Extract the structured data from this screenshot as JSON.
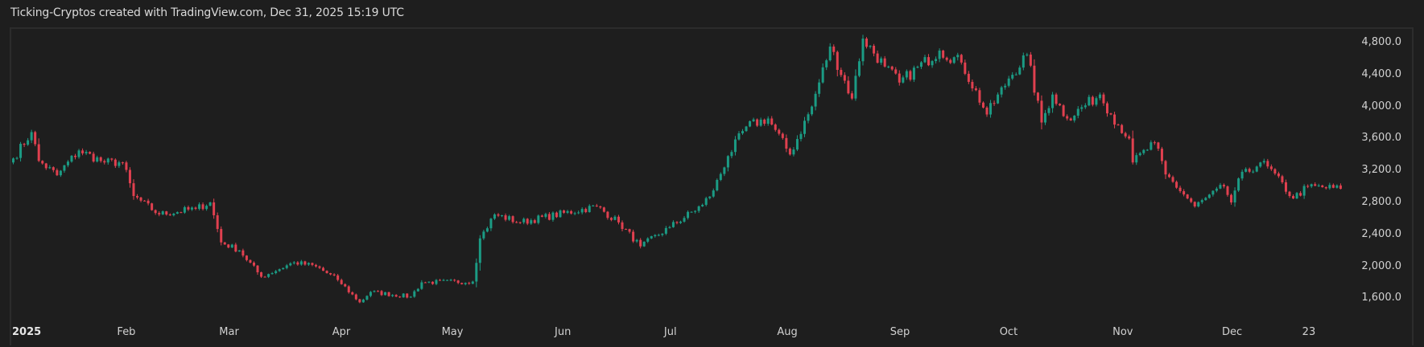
{
  "header": {
    "title": "Ticking-Cryptos created with TradingView.com, Dec 31, 2025 15:19 UTC"
  },
  "colors": {
    "background": "#1e1e1e",
    "frame": "#2c2c2c",
    "up": "#1b9b84",
    "down": "#e0404f",
    "text": "#d1d1d1"
  },
  "price_axis": {
    "labels": [
      "4,800.0",
      "4,400.0",
      "4,000.0",
      "3,600.0",
      "3,200.0",
      "2,800.0",
      "2,400.0",
      "2,000.0",
      "1,600.0"
    ],
    "values": [
      4800,
      4400,
      4000,
      3600,
      3200,
      2800,
      2400,
      2000,
      1600
    ]
  },
  "time_axis": {
    "labels": [
      "2025",
      "Feb",
      "Mar",
      "Apr",
      "May",
      "Jun",
      "Jul",
      "Aug",
      "Sep",
      "Oct",
      "Nov",
      "Dec",
      "23"
    ],
    "day_index": [
      0,
      31,
      59,
      90,
      120,
      151,
      181,
      212,
      243,
      273,
      304,
      334,
      356
    ]
  },
  "chart_data": {
    "type": "candlestick",
    "title": "Ticking-Cryptos created with TradingView.com, Dec 31, 2025 15:19 UTC",
    "xlabel": "",
    "ylabel": "",
    "interval": "1D",
    "x_range": [
      "2025-01-01",
      "2025-12-31"
    ],
    "ylim": [
      1400,
      4950
    ],
    "grid": false,
    "y_ticks": [
      1600,
      2000,
      2400,
      2800,
      3200,
      3600,
      4000,
      4400,
      4800
    ],
    "x_ticks": [
      "2025",
      "Feb",
      "Mar",
      "Apr",
      "May",
      "Jun",
      "Jul",
      "Aug",
      "Sep",
      "Oct",
      "Nov",
      "Dec",
      "23"
    ],
    "anchors_close": [
      {
        "date": "2025-01-01",
        "close": 3350
      },
      {
        "date": "2025-01-06",
        "close": 3680
      },
      {
        "date": "2025-01-08",
        "close": 3320
      },
      {
        "date": "2025-01-13",
        "close": 3140
      },
      {
        "date": "2025-01-19",
        "close": 3450
      },
      {
        "date": "2025-01-26",
        "close": 3300
      },
      {
        "date": "2025-01-31",
        "close": 3300
      },
      {
        "date": "2025-02-03",
        "close": 2880
      },
      {
        "date": "2025-02-10",
        "close": 2650
      },
      {
        "date": "2025-02-20",
        "close": 2720
      },
      {
        "date": "2025-02-24",
        "close": 2800
      },
      {
        "date": "2025-02-27",
        "close": 2300
      },
      {
        "date": "2025-03-04",
        "close": 2200
      },
      {
        "date": "2025-03-10",
        "close": 1870
      },
      {
        "date": "2025-03-19",
        "close": 2050
      },
      {
        "date": "2025-03-25",
        "close": 2000
      },
      {
        "date": "2025-03-31",
        "close": 1830
      },
      {
        "date": "2025-04-06",
        "close": 1550
      },
      {
        "date": "2025-04-09",
        "close": 1680
      },
      {
        "date": "2025-04-20",
        "close": 1620
      },
      {
        "date": "2025-04-23",
        "close": 1800
      },
      {
        "date": "2025-05-07",
        "close": 1810
      },
      {
        "date": "2025-05-09",
        "close": 2350
      },
      {
        "date": "2025-05-13",
        "close": 2650
      },
      {
        "date": "2025-05-20",
        "close": 2550
      },
      {
        "date": "2025-06-10",
        "close": 2750
      },
      {
        "date": "2025-06-16",
        "close": 2550
      },
      {
        "date": "2025-06-22",
        "close": 2250
      },
      {
        "date": "2025-06-30",
        "close": 2490
      },
      {
        "date": "2025-07-09",
        "close": 2770
      },
      {
        "date": "2025-07-12",
        "close": 2950
      },
      {
        "date": "2025-07-16",
        "close": 3380
      },
      {
        "date": "2025-07-21",
        "close": 3750
      },
      {
        "date": "2025-07-27",
        "close": 3850
      },
      {
        "date": "2025-08-02",
        "close": 3400
      },
      {
        "date": "2025-08-08",
        "close": 4000
      },
      {
        "date": "2025-08-13",
        "close": 4750
      },
      {
        "date": "2025-08-19",
        "close": 4100
      },
      {
        "date": "2025-08-22",
        "close": 4850
      },
      {
        "date": "2025-08-28",
        "close": 4500
      },
      {
        "date": "2025-09-01",
        "close": 4300
      },
      {
        "date": "2025-09-12",
        "close": 4700
      },
      {
        "date": "2025-09-18",
        "close": 4550
      },
      {
        "date": "2025-09-25",
        "close": 3900
      },
      {
        "date": "2025-10-01",
        "close": 4350
      },
      {
        "date": "2025-10-06",
        "close": 4650
      },
      {
        "date": "2025-10-10",
        "close": 3800
      },
      {
        "date": "2025-10-13",
        "close": 4150
      },
      {
        "date": "2025-10-17",
        "close": 3850
      },
      {
        "date": "2025-10-26",
        "close": 4150
      },
      {
        "date": "2025-10-29",
        "close": 3900
      },
      {
        "date": "2025-11-03",
        "close": 3600
      },
      {
        "date": "2025-11-04",
        "close": 3300
      },
      {
        "date": "2025-11-10",
        "close": 3550
      },
      {
        "date": "2025-11-13",
        "close": 3150
      },
      {
        "date": "2025-11-21",
        "close": 2750
      },
      {
        "date": "2025-11-29",
        "close": 3000
      },
      {
        "date": "2025-12-01",
        "close": 2800
      },
      {
        "date": "2025-12-03",
        "close": 3100
      },
      {
        "date": "2025-12-09",
        "close": 3300
      },
      {
        "date": "2025-12-11",
        "close": 3250
      },
      {
        "date": "2025-12-18",
        "close": 2850
      },
      {
        "date": "2025-12-22",
        "close": 3000
      },
      {
        "date": "2025-12-31",
        "close": 2970
      }
    ],
    "notable": {
      "high": {
        "date": "2025-08-24",
        "value": 4950
      },
      "low": {
        "date": "2025-04-09",
        "value": 1390
      },
      "last_close": 2970
    }
  }
}
